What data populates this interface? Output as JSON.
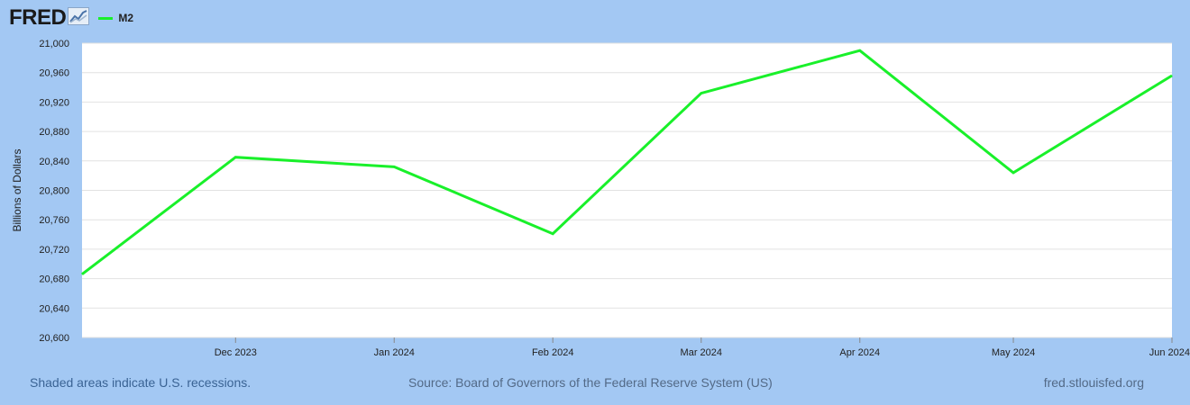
{
  "header": {
    "logo": "FRED",
    "logo_icon": "fred-graph-icon"
  },
  "colors": {
    "background": "#a3c8f3",
    "plot_bg": "#ffffff",
    "series": "#19f02a"
  },
  "chart_data": {
    "type": "line",
    "ylabel": "Billions of Dollars",
    "ylim": [
      20600,
      21000
    ],
    "yticks": [
      "21,000",
      "20,960",
      "20,920",
      "20,880",
      "20,840",
      "20,800",
      "20,760",
      "20,720",
      "20,680",
      "20,640",
      "20,600"
    ],
    "ytick_values": [
      21000,
      20960,
      20920,
      20880,
      20840,
      20800,
      20760,
      20720,
      20680,
      20640,
      20600
    ],
    "x": [
      "2023-11-01",
      "2023-12-01",
      "2024-01-01",
      "2024-02-01",
      "2024-03-01",
      "2024-04-01",
      "2024-05-01",
      "2024-06-01"
    ],
    "xtick_labels": [
      "Dec 2023",
      "Jan 2024",
      "Feb 2024",
      "Mar 2024",
      "Apr 2024",
      "May 2024",
      "Jun 2024"
    ],
    "grid": true,
    "legend": "top-left",
    "series": [
      {
        "name": "M2",
        "values": [
          20686,
          20845,
          20832,
          20741,
          20932,
          20990,
          20824,
          20956
        ]
      }
    ]
  },
  "footer": {
    "note": "Shaded areas indicate U.S. recessions.",
    "source": "Source: Board of Governors of the Federal Reserve System (US)",
    "site": "fred.stlouisfed.org"
  }
}
